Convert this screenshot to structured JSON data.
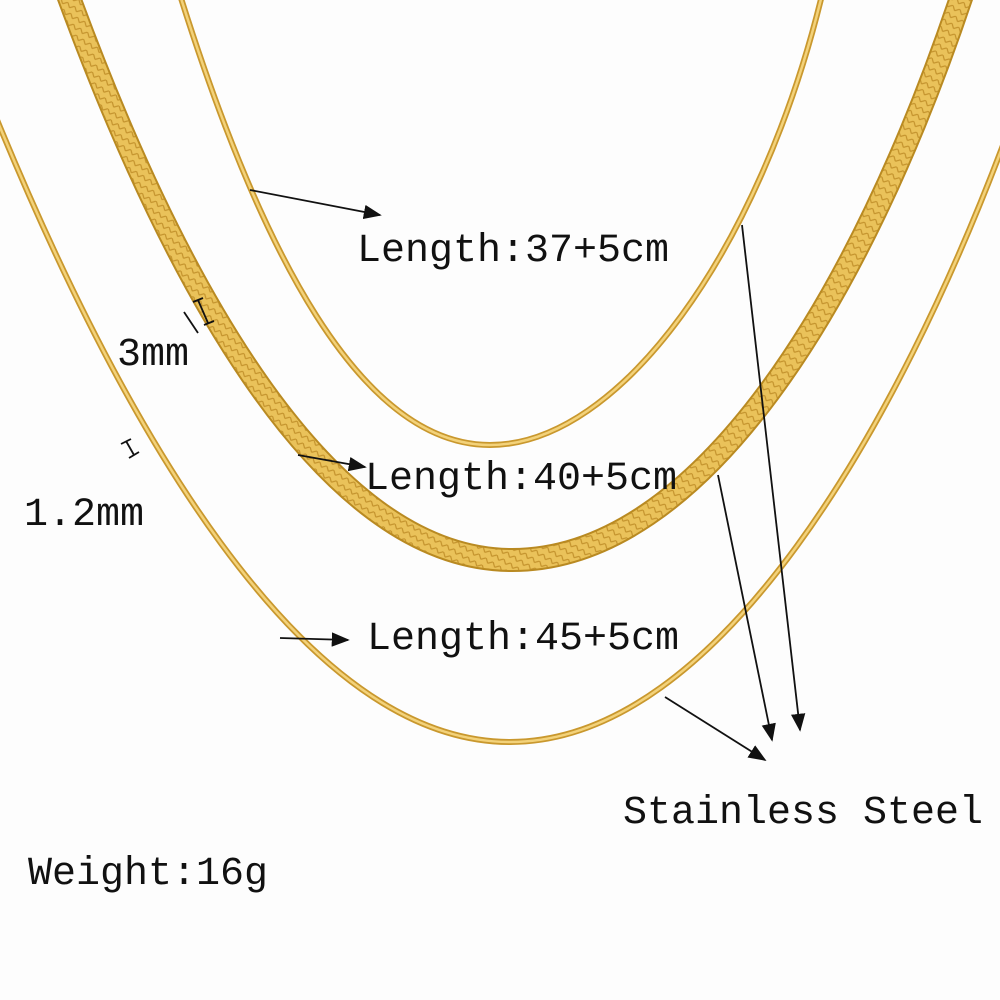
{
  "labels": {
    "length_1": "Length:37+5cm",
    "length_2": "Length:40+5cm",
    "length_3": "Length:45+5cm",
    "width_wide": "3mm",
    "width_thin": "1.2mm",
    "material": "Stainless Steel",
    "weight": "Weight:16g"
  },
  "colors": {
    "gold_light": "#f6d77a",
    "gold_mid": "#e2b445",
    "gold_dark": "#b98a22",
    "text": "#111111",
    "background": "#fdfdfd"
  }
}
